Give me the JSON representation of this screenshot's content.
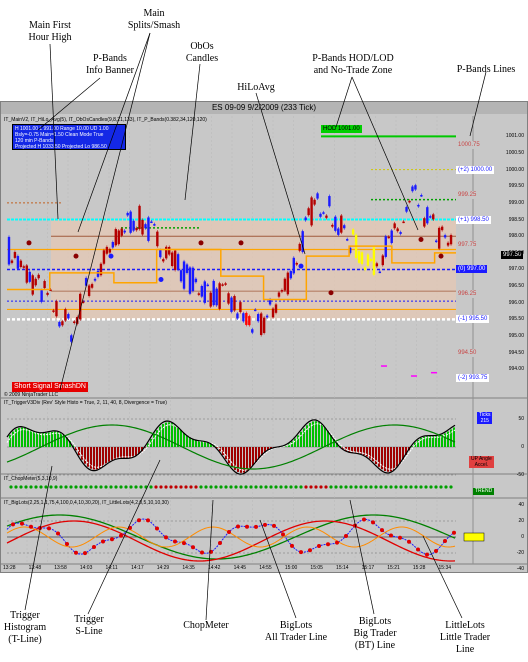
{
  "annotations": {
    "main_first_hour_high": "Main First\nHour High",
    "main_splits_smash": "Main\nSplits/Smash",
    "pbands_info_banner": "P-Bands\nInfo Banner",
    "obos_candles": "ObOs\nCandles",
    "hiloavg": "HiLoAvg",
    "pbands_hod_lod": "P-Bands HOD/LOD\nand No-Trade Zone",
    "pbands_lines": "P-Bands Lines",
    "trigger_histogram": "Trigger\nHistogram\n(T-Line)",
    "trigger_sline": "Trigger\nS-Line",
    "chopmeter": "ChopMeter",
    "biglots_all_trader": "BigLots\nAll Trader Line",
    "biglots_big_trader": "BigLots\nBig Trader\n(BT) Line",
    "littlelots": "LittleLots\nLittle Trader\nLine"
  },
  "chart": {
    "window_title": "ES 09-09  9/2/2009 (233 Tick)",
    "main_indicators_label": "IT_MainV2, IT_HiLo_Avg(5), IT_ObOsCandles(9,8,21,133), IT_P_Bands(0.382,34,120,120)",
    "info_banner": {
      "line1": "H 1001.00  L 991.00  Range 10.00  UD 1.00",
      "line2": "Bsly=-0.75  Main=1.50  Clean Mode True",
      "line3": "120 min  P-Bands",
      "line4": "Projected H 1033.50  Projected Lo 986.50"
    },
    "hod_label": "HOD 1001.00",
    "current_price": "997.50",
    "signal_label": "Short Signal  SmashDN",
    "copyright": "© 2009 NinjaTrader LLC",
    "price_tags": [
      {
        "text": "1000.75",
        "price": 1000.75,
        "color": "#c84646",
        "bg": "#c8c8c8"
      },
      {
        "text": "(+2) 1000.00",
        "price": 1000.0,
        "color": "#1a1aff",
        "bg": "#ffffff"
      },
      {
        "text": "999.25",
        "price": 999.25,
        "color": "#c84646",
        "bg": "#c8c8c8"
      },
      {
        "text": "(+1) 998.50",
        "price": 998.5,
        "color": "#1a1aff",
        "bg": "#ffffff"
      },
      {
        "text": "997.75",
        "price": 997.75,
        "color": "#c84646",
        "bg": "#c8c8c8"
      },
      {
        "text": "(0) 997.00",
        "price": 997.0,
        "color": "#ffffff",
        "bg": "#1a1aff"
      },
      {
        "text": "996.25",
        "price": 996.25,
        "color": "#c84646",
        "bg": "#c8c8c8"
      },
      {
        "text": "(-1) 995.50",
        "price": 995.5,
        "color": "#1a1aff",
        "bg": "#ffffff"
      },
      {
        "text": "994.50",
        "price": 994.5,
        "color": "#c84646",
        "bg": "#c8c8c8"
      },
      {
        "text": "(-2) 993.75",
        "price": 993.75,
        "color": "#1a1aff",
        "bg": "#ffffff"
      }
    ],
    "price_axis": [
      "1001.00",
      "1000.50",
      "1000.00",
      "999.50",
      "999.00",
      "998.50",
      "998.00",
      "997.50",
      "997.00",
      "996.50",
      "996.00",
      "995.50",
      "995.00",
      "994.50",
      "994.00"
    ],
    "trigger_label": "IT_TriggerV3Div (Rev' Style Histo = True, 2, 11, 40, 8, Divergence = True)",
    "trigger_ticks_label": "Ticks\n215",
    "trigger_axis": [
      "50",
      "0",
      "-50"
    ],
    "trigger_angle_label": "UP Angle\nAccel.",
    "chop_label": "IT_ChopMeter(5,3,10,9)",
    "trend_label": "TREND",
    "biglots_label": "IT_BigLots(2,25,1,1,75,4,100,0,4,10,30,20), IT_LittleLots(4,2,0,5,10,10,30)",
    "biglots_axis": [
      "40",
      "20",
      "0",
      "-20",
      "-40"
    ],
    "time_axis": [
      "13:28",
      "13:48",
      "13:58",
      "14:03",
      "14:11",
      "14:17",
      "14:29",
      "14:35",
      "14:42",
      "14:45",
      "14:55",
      "15:00",
      "15:05",
      "15:14",
      "15:17",
      "15:21",
      "15:28",
      "15:34"
    ]
  },
  "colors": {
    "up_candle": "#1a1aff",
    "down_candle": "#b40000",
    "obos_up": "#ffff00",
    "obos_down": "#ff0000",
    "hiloavg": "#ffa500",
    "zone_fill": "#e6c8b4",
    "green_line": "#00c800",
    "cyan_line": "#00ffff",
    "trend_box": "#008000"
  }
}
